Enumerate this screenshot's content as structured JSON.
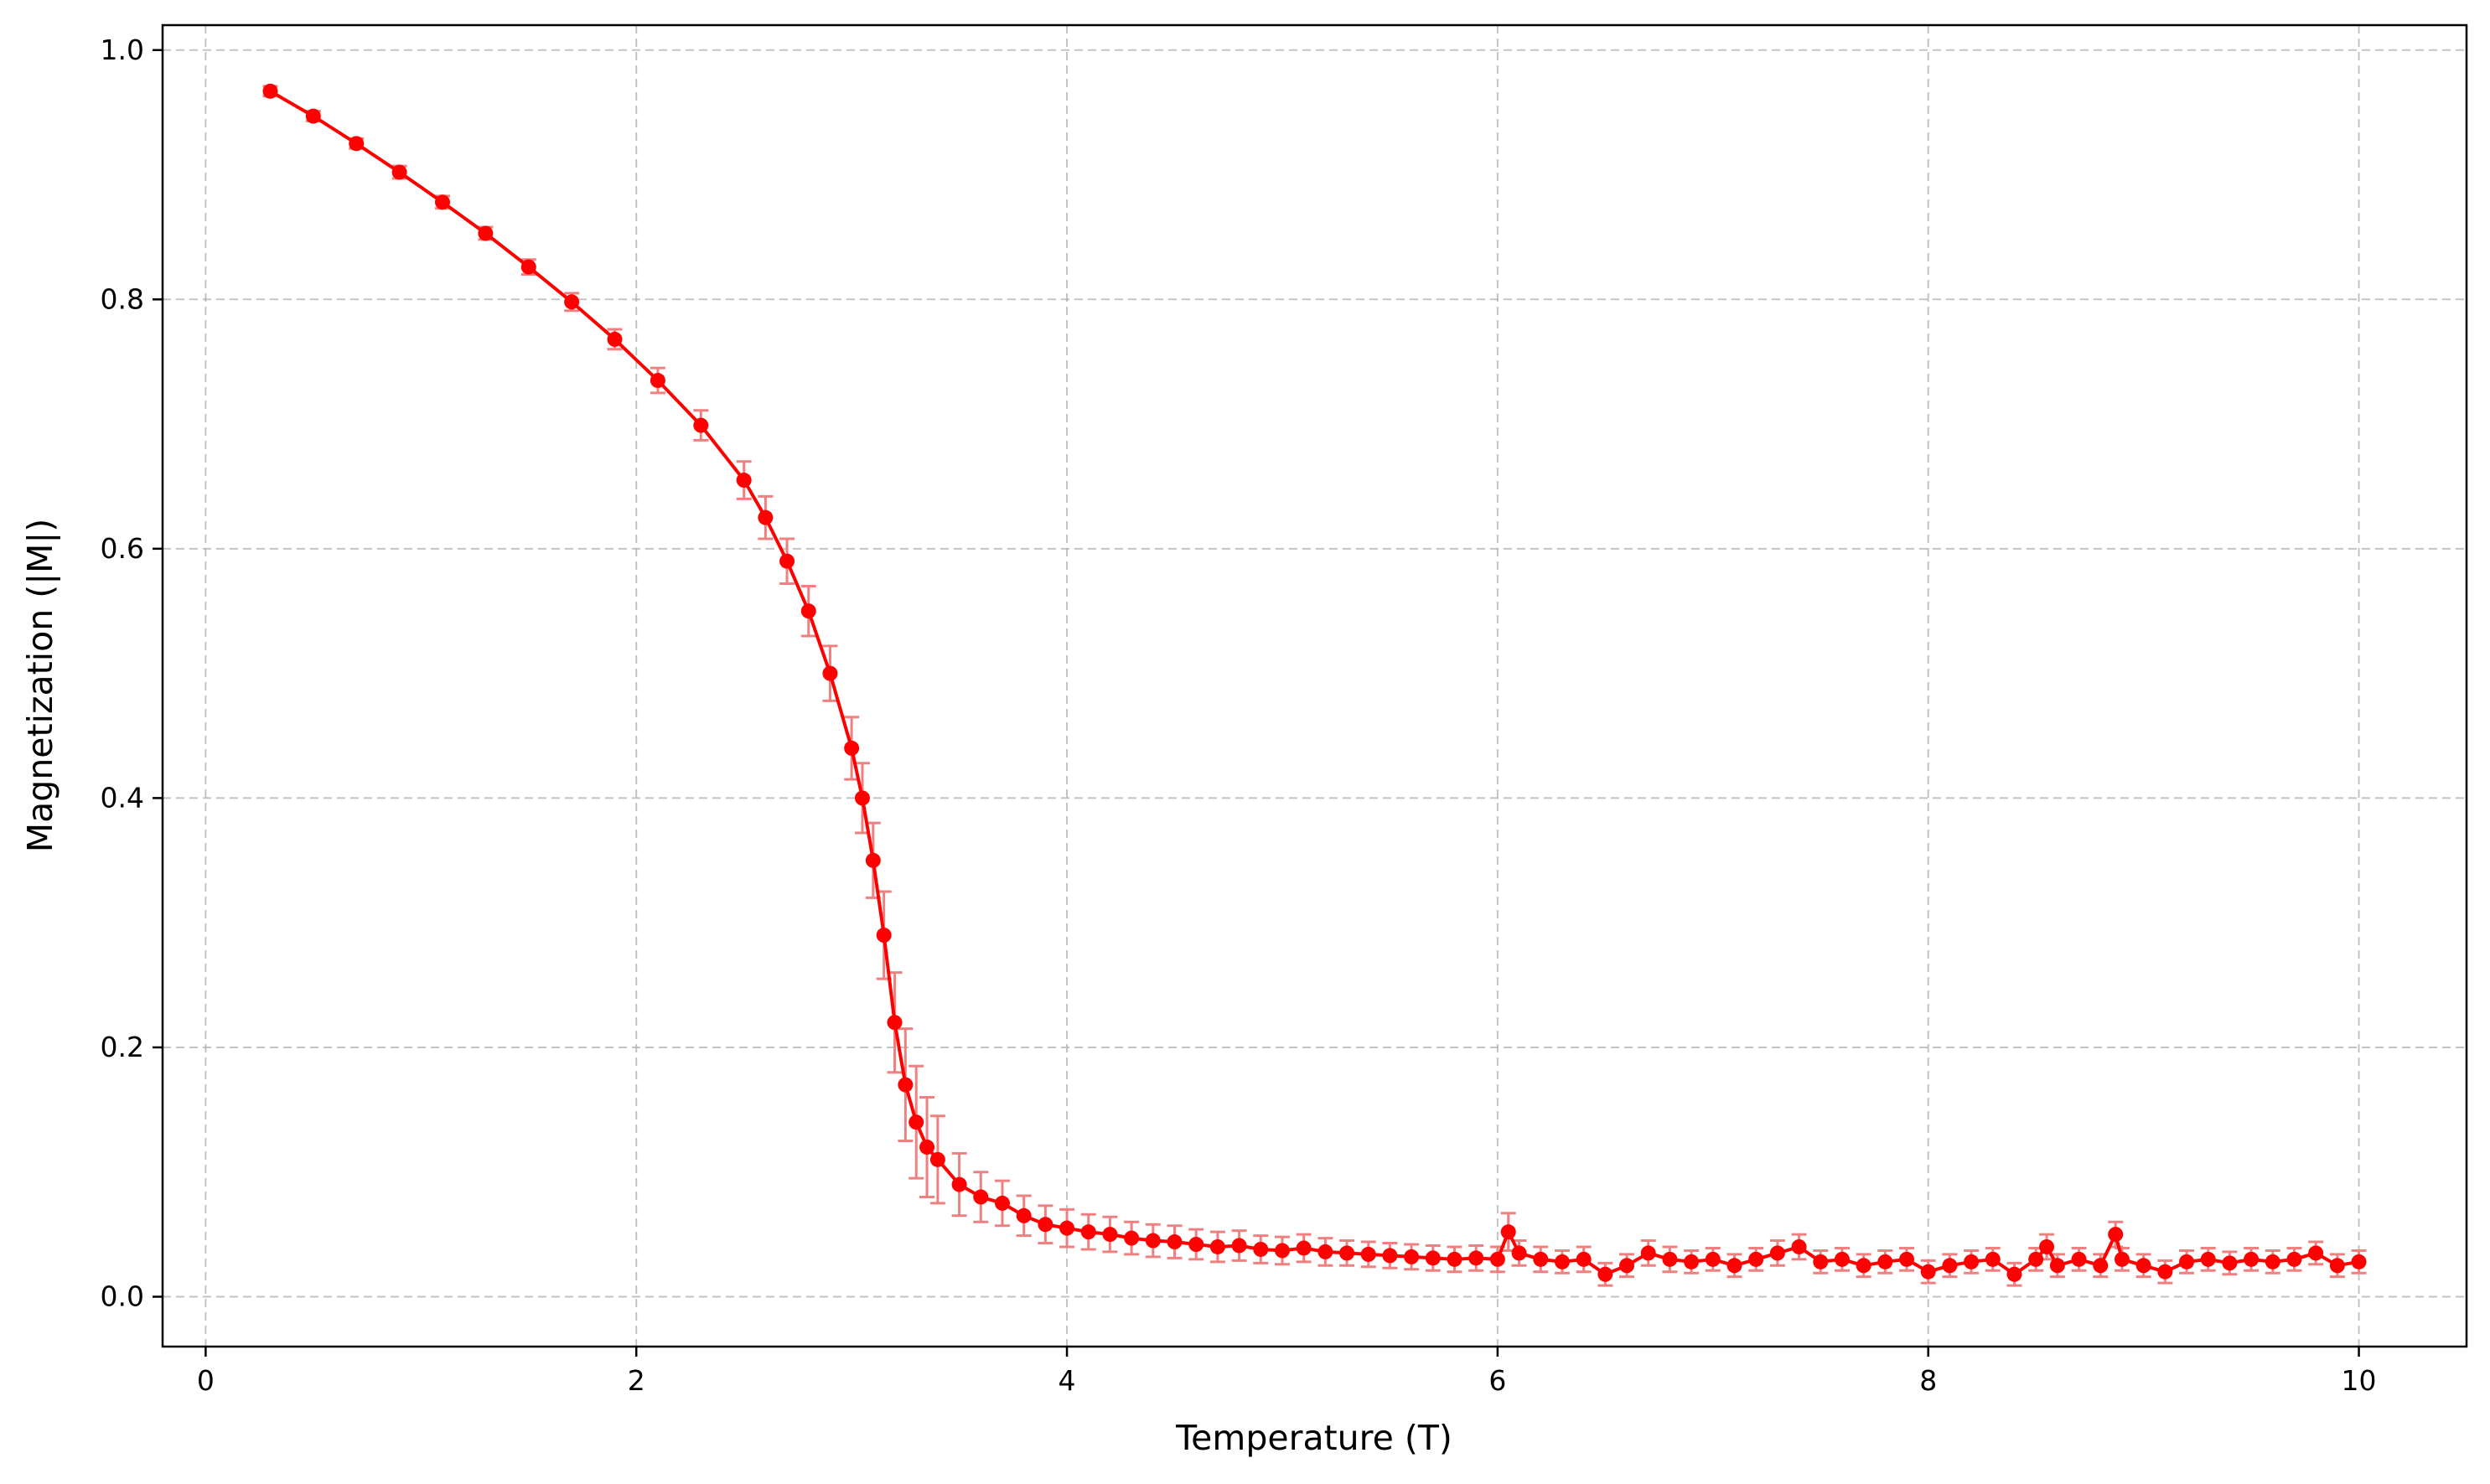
{
  "chart_data": {
    "type": "scatter",
    "title": "",
    "xlabel": "Temperature (T)",
    "ylabel": "Magnetization (|M|)",
    "xlim": [
      -0.2,
      10.5
    ],
    "ylim": [
      -0.04,
      1.02
    ],
    "xticks": [
      0,
      2,
      4,
      6,
      8,
      10
    ],
    "xtick_labels": [
      "0",
      "2",
      "4",
      "6",
      "8",
      "10"
    ],
    "yticks": [
      0.0,
      0.2,
      0.4,
      0.6,
      0.8,
      1.0
    ],
    "ytick_labels": [
      "0.0",
      "0.2",
      "0.4",
      "0.6",
      "0.8",
      "1.0"
    ],
    "grid": true,
    "legend": "none",
    "colors": {
      "marker": "#ff0000",
      "errorbar": "#f08080",
      "grid": "#b0b0b0"
    },
    "series": [
      {
        "marker": "circle",
        "error_bars": true,
        "x": [
          0.3,
          0.5,
          0.7,
          0.9,
          1.1,
          1.3,
          1.5,
          1.7,
          1.9,
          2.1,
          2.3,
          2.5,
          2.6,
          2.7,
          2.8,
          2.9,
          3.0,
          3.05,
          3.1,
          3.15,
          3.2,
          3.25,
          3.3,
          3.35,
          3.4,
          3.5,
          3.6,
          3.7,
          3.8,
          3.9,
          4.0,
          4.1,
          4.2,
          4.3,
          4.4,
          4.5,
          4.6,
          4.7,
          4.8,
          4.9,
          5.0,
          5.1,
          5.2,
          5.3,
          5.4,
          5.5,
          5.6,
          5.7,
          5.8,
          5.9,
          6.0,
          6.05,
          6.1,
          6.2,
          6.3,
          6.4,
          6.5,
          6.6,
          6.7,
          6.8,
          6.9,
          7.0,
          7.1,
          7.2,
          7.3,
          7.4,
          7.5,
          7.6,
          7.7,
          7.8,
          7.9,
          8.0,
          8.1,
          8.2,
          8.3,
          8.4,
          8.5,
          8.55,
          8.6,
          8.7,
          8.8,
          8.87,
          8.9,
          9.0,
          9.1,
          9.2,
          9.3,
          9.4,
          9.5,
          9.6,
          9.7,
          9.8,
          9.9,
          10.0
        ],
        "y": [
          0.967,
          0.947,
          0.925,
          0.902,
          0.878,
          0.853,
          0.826,
          0.798,
          0.768,
          0.735,
          0.699,
          0.655,
          0.625,
          0.59,
          0.55,
          0.5,
          0.44,
          0.4,
          0.35,
          0.29,
          0.22,
          0.17,
          0.14,
          0.12,
          0.11,
          0.09,
          0.08,
          0.075,
          0.065,
          0.058,
          0.055,
          0.052,
          0.05,
          0.047,
          0.045,
          0.044,
          0.042,
          0.04,
          0.041,
          0.038,
          0.037,
          0.039,
          0.036,
          0.035,
          0.034,
          0.033,
          0.032,
          0.031,
          0.03,
          0.031,
          0.03,
          0.052,
          0.035,
          0.03,
          0.028,
          0.03,
          0.018,
          0.025,
          0.035,
          0.03,
          0.028,
          0.03,
          0.025,
          0.03,
          0.035,
          0.04,
          0.028,
          0.03,
          0.025,
          0.028,
          0.03,
          0.02,
          0.025,
          0.028,
          0.03,
          0.018,
          0.03,
          0.04,
          0.025,
          0.03,
          0.025,
          0.05,
          0.03,
          0.025,
          0.02,
          0.028,
          0.03,
          0.027,
          0.03,
          0.028,
          0.03,
          0.035,
          0.025,
          0.028
        ],
        "err": [
          0.004,
          0.004,
          0.004,
          0.005,
          0.005,
          0.005,
          0.006,
          0.007,
          0.008,
          0.01,
          0.012,
          0.015,
          0.017,
          0.018,
          0.02,
          0.022,
          0.025,
          0.028,
          0.03,
          0.035,
          0.04,
          0.045,
          0.045,
          0.04,
          0.035,
          0.025,
          0.02,
          0.018,
          0.016,
          0.015,
          0.015,
          0.014,
          0.014,
          0.013,
          0.013,
          0.013,
          0.012,
          0.012,
          0.012,
          0.011,
          0.011,
          0.011,
          0.011,
          0.01,
          0.01,
          0.01,
          0.01,
          0.01,
          0.01,
          0.01,
          0.01,
          0.015,
          0.01,
          0.01,
          0.009,
          0.01,
          0.009,
          0.009,
          0.01,
          0.01,
          0.009,
          0.009,
          0.009,
          0.009,
          0.01,
          0.01,
          0.009,
          0.009,
          0.009,
          0.009,
          0.009,
          0.009,
          0.009,
          0.009,
          0.009,
          0.009,
          0.009,
          0.01,
          0.009,
          0.009,
          0.009,
          0.01,
          0.009,
          0.009,
          0.009,
          0.009,
          0.009,
          0.009,
          0.009,
          0.009,
          0.009,
          0.009,
          0.009,
          0.009
        ]
      }
    ]
  }
}
